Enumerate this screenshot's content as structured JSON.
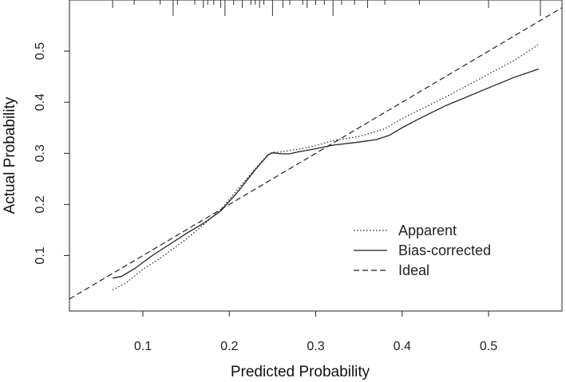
{
  "chart_data": {
    "type": "line",
    "xlabel": "Predicted Probability",
    "ylabel": "Actual Probability",
    "xlim": [
      0.015,
      0.585
    ],
    "ylim": [
      -0.0085,
      0.6
    ],
    "x_ticks": [
      "0.1",
      "0.2",
      "0.3",
      "0.4",
      "0.5"
    ],
    "y_ticks": [
      "0.1",
      "0.2",
      "0.3",
      "0.4",
      "0.5"
    ],
    "grid": false,
    "legend_position": "bottom-right",
    "series": [
      {
        "name": "Apparent",
        "style": "dotted",
        "x": [
          0.065,
          0.08,
          0.1,
          0.12,
          0.15,
          0.17,
          0.19,
          0.21,
          0.23,
          0.245,
          0.25,
          0.26,
          0.28,
          0.3,
          0.32,
          0.35,
          0.38,
          0.4,
          0.45,
          0.5,
          0.53,
          0.558
        ],
        "y": [
          0.033,
          0.046,
          0.073,
          0.095,
          0.132,
          0.16,
          0.19,
          0.23,
          0.27,
          0.298,
          0.302,
          0.303,
          0.308,
          0.315,
          0.325,
          0.333,
          0.348,
          0.368,
          0.41,
          0.455,
          0.482,
          0.513
        ]
      },
      {
        "name": "Bias-corrected",
        "style": "solid",
        "x": [
          0.065,
          0.075,
          0.09,
          0.11,
          0.13,
          0.15,
          0.17,
          0.19,
          0.21,
          0.23,
          0.245,
          0.25,
          0.26,
          0.27,
          0.28,
          0.3,
          0.32,
          0.35,
          0.37,
          0.385,
          0.4,
          0.42,
          0.45,
          0.5,
          0.53,
          0.558
        ],
        "y": [
          0.056,
          0.059,
          0.074,
          0.099,
          0.121,
          0.143,
          0.163,
          0.187,
          0.225,
          0.268,
          0.297,
          0.301,
          0.299,
          0.299,
          0.303,
          0.309,
          0.316,
          0.322,
          0.327,
          0.335,
          0.35,
          0.368,
          0.393,
          0.428,
          0.449,
          0.465
        ]
      },
      {
        "name": "Ideal",
        "style": "dashed",
        "x": [
          0.015,
          0.585
        ],
        "y": [
          0.015,
          0.585
        ]
      }
    ],
    "rug_x": [
      0.065,
      0.09,
      0.12,
      0.135,
      0.14,
      0.16,
      0.17,
      0.175,
      0.182,
      0.19,
      0.195,
      0.205,
      0.215,
      0.225,
      0.23,
      0.235,
      0.24,
      0.25,
      0.262,
      0.27,
      0.285,
      0.29,
      0.3,
      0.31,
      0.32,
      0.33,
      0.345,
      0.36,
      0.38,
      0.42,
      0.5,
      0.56
    ]
  }
}
